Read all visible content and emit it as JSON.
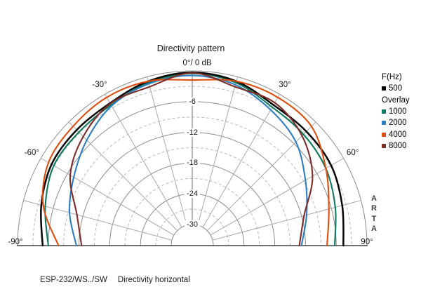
{
  "header": {
    "title": "Directivity pattern"
  },
  "top_axis_label": "0°/ 0 dB",
  "branding": {
    "watermark": "ARTA"
  },
  "caption": {
    "model": "ESP-232/WS../SW",
    "label": "Directivity horizontal"
  },
  "legend": {
    "rows": [
      {
        "type": "heading",
        "label": "F(Hz)"
      },
      {
        "type": "item",
        "label": "500",
        "color": "#000000"
      },
      {
        "type": "heading",
        "label": "Overlay"
      },
      {
        "type": "item",
        "label": "1000",
        "color": "#0f7a5f"
      },
      {
        "type": "item",
        "label": "2000",
        "color": "#2e7fc1"
      },
      {
        "type": "item",
        "label": "4000",
        "color": "#de4e0e"
      },
      {
        "type": "item",
        "label": "8000",
        "color": "#7e2d28"
      }
    ]
  },
  "chart_data": {
    "type": "line",
    "subtype": "polar-semicircle-directivity",
    "title": "Directivity pattern",
    "angle_axis": {
      "unit": "deg",
      "range": [
        -90,
        90
      ],
      "spoke_step_deg": 15,
      "label_angles": [
        -90,
        -60,
        -30,
        30,
        60,
        90
      ],
      "labels": [
        "-90°",
        "-60°",
        "-30°",
        "30°",
        "60°",
        "90°"
      ],
      "zero_label": "0°/ 0 dB"
    },
    "radial_axis": {
      "unit": "dB",
      "range": [
        0,
        -30
      ],
      "solid_grid_db": [
        0,
        -6,
        -12,
        -18,
        -24,
        -30
      ],
      "dashed_grid_db": [
        -3,
        -9,
        -15,
        -21,
        -27
      ],
      "tick_values": [
        -6,
        -12,
        -18,
        -24,
        -30
      ],
      "tick_labels": [
        "-6",
        "-12",
        "-18",
        "-24",
        "-30"
      ]
    },
    "x_angles_deg": [
      -90,
      -75,
      -60,
      -45,
      -30,
      -15,
      0,
      15,
      30,
      45,
      60,
      75,
      90
    ],
    "series": [
      {
        "name": "500",
        "color": "#050505",
        "values": [
          -4.9,
          -3.6,
          -2.4,
          -2.2,
          -2.0,
          -0.9,
          -0.3,
          -0.9,
          -2.4,
          -2.6,
          -2.8,
          -3.8,
          -4.6
        ]
      },
      {
        "name": "1000",
        "color": "#0f7a5f",
        "values": [
          -6.0,
          -4.4,
          -2.9,
          -2.8,
          -2.4,
          -1.2,
          -0.5,
          -1.2,
          -2.9,
          -3.4,
          -4.0,
          -5.2,
          -6.3
        ]
      },
      {
        "name": "2000",
        "color": "#2e7fc1",
        "values": [
          -11.5,
          -9.3,
          -7.4,
          -5.0,
          -2.6,
          -1.4,
          -0.9,
          -1.6,
          -3.5,
          -5.5,
          -8.6,
          -11.0,
          -12.8
        ]
      },
      {
        "name": "4000",
        "color": "#de4e0e",
        "values": [
          -8.0,
          -4.0,
          -1.7,
          -1.2,
          -0.7,
          -0.9,
          -1.8,
          -0.9,
          -0.7,
          -1.2,
          -4.0,
          -6.5,
          -7.8
        ]
      },
      {
        "name": "8000",
        "color": "#7e2d28",
        "values": [
          -12.5,
          -10.8,
          -6.6,
          -4.0,
          -2.1,
          -2.0,
          -0.4,
          -2.0,
          -1.9,
          -3.8,
          -7.0,
          -11.5,
          -13.2
        ]
      }
    ],
    "legend_position": "right",
    "grid": {
      "circles": "solid every 6 dB, dashed every 3 dB",
      "spokes": "every 15 deg"
    }
  }
}
